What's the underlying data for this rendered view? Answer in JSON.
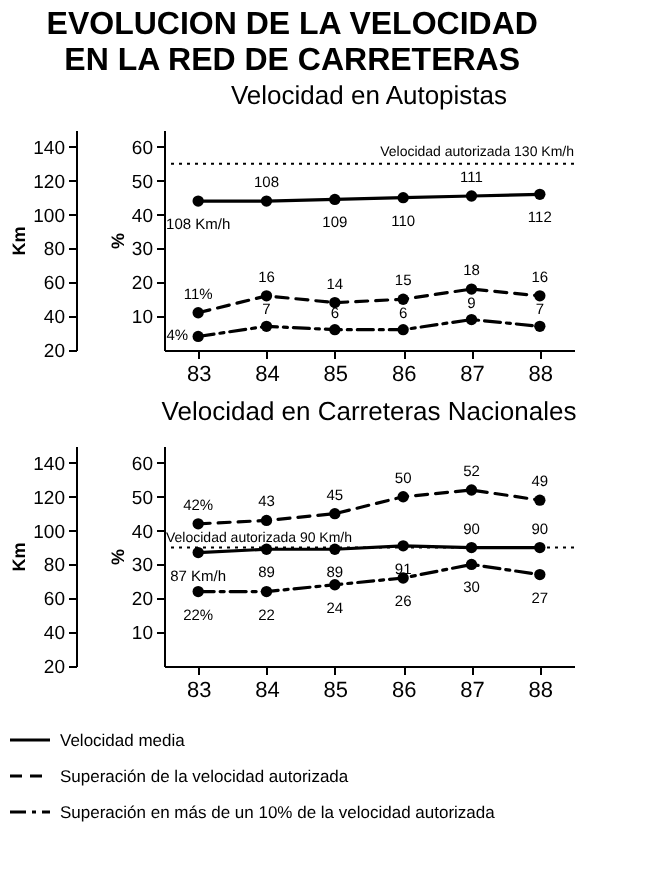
{
  "chart_data": [
    {
      "type": "line",
      "title": "EVOLUCION DE LA VELOCIDAD EN LA RED DE CARRETERAS",
      "subtitle": "Velocidad en Autopistas",
      "ylabel": "Km",
      "y2label": "%",
      "categories": [
        "83",
        "84",
        "85",
        "86",
        "87",
        "88"
      ],
      "ylim": [
        20,
        150
      ],
      "yticks": [
        20,
        40,
        60,
        80,
        100,
        120,
        140
      ],
      "y2lim": [
        0,
        65
      ],
      "y2ticks": [
        10,
        20,
        30,
        40,
        50,
        60
      ],
      "grid": false,
      "legend": false,
      "marker": "circle",
      "ref_lines": [
        {
          "axis": "y",
          "value": 130,
          "label": "Velocidad autorizada 130 Km/h",
          "line_style": "dotted",
          "color": "#000000"
        }
      ],
      "series": [
        {
          "color": "#000000",
          "line_style": "solid",
          "values": [
            108,
            108,
            109,
            110,
            111,
            112
          ],
          "value_labels": [
            "108 Km/h",
            "108",
            "109",
            "110",
            "111",
            "112"
          ]
        },
        {
          "color": "#000000",
          "line_style": "dashed",
          "axis": "y2",
          "values": [
            11,
            16,
            14,
            15,
            18,
            16
          ],
          "value_labels": [
            "11%",
            "16",
            "14",
            "15",
            "18",
            "16"
          ]
        },
        {
          "color": "#000000",
          "line_style": "dashdot",
          "axis": "y2",
          "values": [
            4,
            7,
            6,
            6,
            9,
            7
          ],
          "value_labels": [
            "4%",
            "7",
            "6",
            "6",
            "9",
            "7"
          ]
        }
      ]
    },
    {
      "type": "line",
      "title": "Velocidad en Carreteras Nacionales",
      "ylabel": "Km",
      "y2label": "%",
      "categories": [
        "83",
        "84",
        "85",
        "86",
        "87",
        "88"
      ],
      "ylim": [
        20,
        150
      ],
      "yticks": [
        20,
        40,
        60,
        80,
        100,
        120,
        140
      ],
      "y2lim": [
        0,
        65
      ],
      "y2ticks": [
        10,
        20,
        30,
        40,
        50,
        60
      ],
      "grid": false,
      "legend": "bottom",
      "marker": "circle",
      "ref_lines": [
        {
          "axis": "y",
          "value": 90,
          "label": "Velocidad autorizada 90 Km/h",
          "line_style": "dotted",
          "color": "#000000"
        }
      ],
      "series": [
        {
          "name": "Velocidad media",
          "color": "#000000",
          "line_style": "solid",
          "values": [
            87,
            89,
            89,
            91,
            90,
            90
          ],
          "value_labels": [
            "87 Km/h",
            "89",
            "89",
            "91",
            "90",
            "90"
          ]
        },
        {
          "name": "Superación de la velocidad autorizada",
          "color": "#000000",
          "line_style": "dashed",
          "axis": "y2",
          "values": [
            42,
            43,
            45,
            50,
            52,
            49
          ],
          "value_labels": [
            "42%",
            "43",
            "45",
            "50",
            "52",
            "49"
          ]
        },
        {
          "name": "Superación en más de un 10% de la velocidad autorizada",
          "color": "#000000",
          "line_style": "dashdot",
          "axis": "y2",
          "values": [
            22,
            22,
            24,
            26,
            30,
            27
          ],
          "value_labels": [
            "22%",
            "22",
            "24",
            "26",
            "30",
            "27"
          ]
        }
      ]
    }
  ]
}
